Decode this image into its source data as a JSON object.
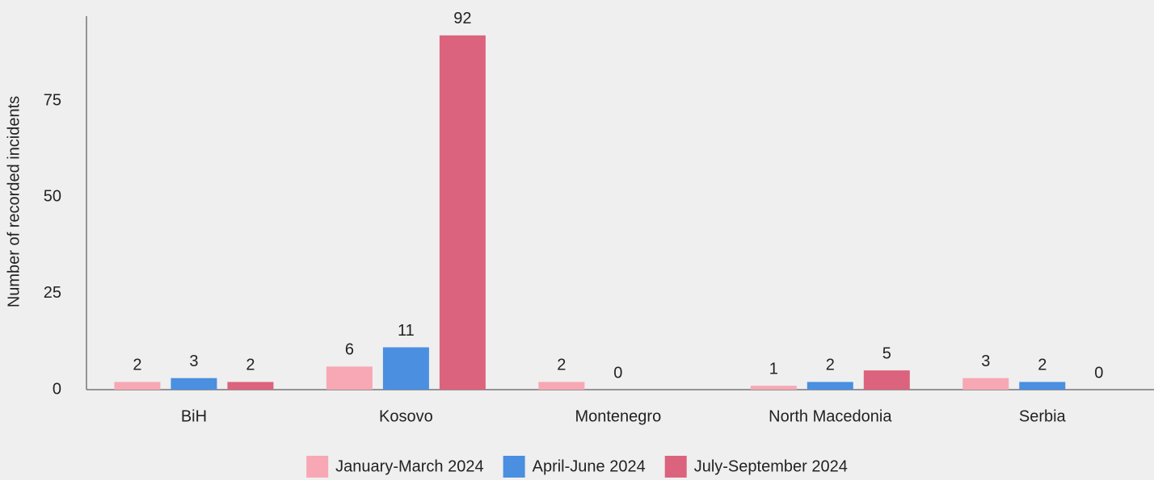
{
  "chart_data": {
    "type": "bar",
    "y_label": "Number of recorded incidents",
    "categories": [
      "BiH",
      "Kosovo",
      "Montenegro",
      "North Macedonia",
      "Serbia"
    ],
    "series": [
      {
        "name": "January-March 2024",
        "color": "#f7a8b4",
        "values": [
          2,
          6,
          2,
          1,
          3
        ]
      },
      {
        "name": "April-June 2024",
        "color": "#4a8fe0",
        "values": [
          3,
          11,
          0,
          2,
          2
        ]
      },
      {
        "name": "July-September 2024",
        "color": "#dc637d",
        "values": [
          2,
          92,
          null,
          5,
          0
        ]
      }
    ],
    "ylim": [
      0,
      97
    ],
    "yticks": [
      0,
      25,
      50,
      75
    ],
    "grid": false,
    "legend": "bottom"
  }
}
